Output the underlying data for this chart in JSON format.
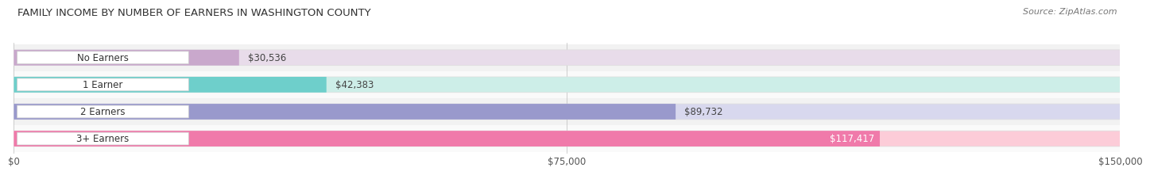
{
  "title": "FAMILY INCOME BY NUMBER OF EARNERS IN WASHINGTON COUNTY",
  "source": "Source: ZipAtlas.com",
  "categories": [
    "No Earners",
    "1 Earner",
    "2 Earners",
    "3+ Earners"
  ],
  "values": [
    30536,
    42383,
    89732,
    117417
  ],
  "bar_colors": [
    "#c9a8cc",
    "#6ecfcb",
    "#9999cc",
    "#f07aaa"
  ],
  "track_colors": [
    "#e8dcea",
    "#cdeee8",
    "#d8d8ee",
    "#fcccd8"
  ],
  "value_labels": [
    "$30,536",
    "$42,383",
    "$89,732",
    "$117,417"
  ],
  "value_inside": [
    false,
    false,
    false,
    true
  ],
  "xlim": [
    0,
    150000
  ],
  "xticks": [
    0,
    75000,
    150000
  ],
  "xtick_labels": [
    "$0",
    "$75,000",
    "$150,000"
  ],
  "title_fontsize": 9.5,
  "source_fontsize": 8,
  "bar_label_fontsize": 8.5,
  "value_fontsize": 8.5,
  "tick_fontsize": 8.5,
  "fig_bg": "#ffffff",
  "bar_height": 0.58
}
